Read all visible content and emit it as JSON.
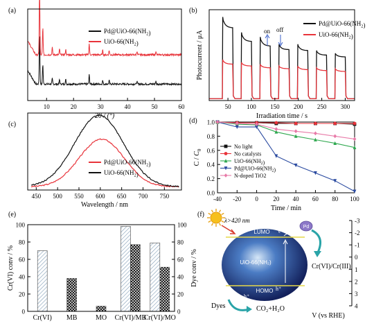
{
  "colors": {
    "black": "#111111",
    "red": "#e8333a",
    "green": "#2fa84f",
    "blue": "#2a4aa0",
    "pink": "#e87aa8",
    "navy": "#1c2f7a"
  },
  "chart_data": [
    {
      "panel": "(a)",
      "type": "line",
      "xlabel": "2θ / (°)",
      "xlim": [
        3,
        60
      ],
      "xticks": [
        10,
        20,
        30,
        40,
        50,
        60
      ],
      "yticks_shown": false,
      "series": [
        {
          "name": "Pd@UiO-66(NH2)",
          "color": "#111111",
          "baseline": 0.18,
          "peaks": [
            [
              7.4,
              0.55
            ],
            [
              8.6,
              0.22
            ],
            [
              12.1,
              0.06
            ],
            [
              14.8,
              0.05
            ],
            [
              17.1,
              0.05
            ],
            [
              25.8,
              0.1
            ],
            [
              30.8,
              0.04
            ],
            [
              33.2,
              0.04
            ],
            [
              43.5,
              0.03
            ],
            [
              50.5,
              0.03
            ]
          ]
        },
        {
          "name": "UiO-66(NH2)",
          "color": "#e8333a",
          "baseline": 0.5,
          "peaks": [
            [
              7.4,
              0.7
            ],
            [
              8.6,
              0.3
            ],
            [
              12.1,
              0.08
            ],
            [
              14.8,
              0.06
            ],
            [
              17.1,
              0.06
            ],
            [
              25.8,
              0.12
            ],
            [
              30.8,
              0.05
            ],
            [
              33.2,
              0.05
            ],
            [
              43.5,
              0.04
            ],
            [
              50.5,
              0.04
            ]
          ]
        }
      ]
    },
    {
      "panel": "(b)",
      "type": "line",
      "xlabel": "Irradiation time / s",
      "ylabel": "Photocurrent / μA",
      "xlim": [
        10,
        320
      ],
      "xticks": [
        50,
        100,
        150,
        200,
        250,
        300
      ],
      "yticks_shown": false,
      "annotations": [
        "on",
        "off"
      ],
      "on_off_cycles": [
        [
          38,
          60
        ],
        [
          78,
          100
        ],
        [
          118,
          140
        ],
        [
          158,
          180
        ],
        [
          198,
          220
        ],
        [
          238,
          260
        ],
        [
          278,
          300
        ]
      ],
      "series": [
        {
          "name": "Pd@UiO-66(NH2)",
          "color": "#111111",
          "off_level": 0.02,
          "on_peaks": [
            0.92,
            0.75,
            0.7,
            0.62,
            0.62,
            0.55,
            0.52
          ],
          "on_plateaus": [
            0.8,
            0.65,
            0.6,
            0.56,
            0.55,
            0.5,
            0.48
          ]
        },
        {
          "name": "UiO-66(NH2)",
          "color": "#e8333a",
          "off_level": 0.02,
          "on_peaks": [
            0.45,
            0.42,
            0.4,
            0.38,
            0.38,
            0.36,
            0.35
          ],
          "on_plateaus": [
            0.4,
            0.38,
            0.36,
            0.35,
            0.34,
            0.33,
            0.32
          ]
        }
      ]
    },
    {
      "panel": "(c)",
      "type": "line",
      "xlabel": "Wavelength / nm",
      "xlim": [
        430,
        790
      ],
      "xticks": [
        450,
        500,
        550,
        600,
        650,
        700,
        750
      ],
      "yticks_shown": false,
      "series": [
        {
          "name": "Pd@UiO-66(NH2)",
          "color": "#e8333a",
          "center": 603,
          "amplitude": 0.62,
          "width": 62,
          "baseline": 0.04
        },
        {
          "name": "UiO-66(NH2)",
          "color": "#111111",
          "center": 597,
          "amplitude": 0.93,
          "width": 68,
          "baseline": 0.04
        }
      ]
    },
    {
      "panel": "(d)",
      "type": "line",
      "xlabel": "Time / min",
      "ylabel": "C / C0",
      "xlim": [
        -40,
        100
      ],
      "ylim": [
        0.0,
        1.0
      ],
      "xticks": [
        -40,
        -20,
        0,
        20,
        40,
        60,
        80,
        100
      ],
      "yticks": [
        0.0,
        0.2,
        0.4,
        0.6,
        0.8,
        1.0
      ],
      "x": [
        -40,
        -20,
        0,
        20,
        40,
        60,
        80,
        100
      ],
      "series": [
        {
          "name": "No light",
          "color": "#111111",
          "marker": "square",
          "values": [
            1.0,
            0.99,
            0.99,
            0.98,
            0.98,
            0.98,
            0.98,
            0.97
          ]
        },
        {
          "name": "No catalysts",
          "color": "#e8333a",
          "marker": "circle",
          "values": [
            1.0,
            0.99,
            0.99,
            0.99,
            0.98,
            0.98,
            0.98,
            0.98
          ]
        },
        {
          "name": "UiO-66(NH2)",
          "color": "#2fa84f",
          "marker": "triangle-up",
          "values": [
            1.0,
            0.97,
            0.96,
            0.86,
            0.8,
            0.75,
            0.7,
            0.64
          ]
        },
        {
          "name": "Pd@UiO-66(NH2)",
          "color": "#2a4aa0",
          "marker": "triangle-down",
          "values": [
            1.0,
            0.93,
            0.93,
            0.52,
            0.39,
            0.28,
            0.17,
            0.02
          ]
        },
        {
          "name": "N-doped TiO2",
          "color": "#e87aa8",
          "marker": "diamond",
          "values": [
            1.0,
            0.98,
            0.97,
            0.9,
            0.87,
            0.84,
            0.8,
            0.76
          ]
        }
      ]
    },
    {
      "panel": "(e)",
      "type": "bar",
      "ylabel": "Cr(VI) conv / %",
      "ylabel_right": "Dye conv / %",
      "ylim": [
        0,
        100
      ],
      "yticks": [
        0,
        20,
        40,
        60,
        80,
        100
      ],
      "categories": [
        "Cr(VI)",
        "MB",
        "MO",
        "Cr(VI)/MB",
        "Cr(VI)/MO"
      ],
      "series": [
        {
          "name": "Cr(VI)",
          "pattern": "diagonal",
          "values": [
            70,
            null,
            null,
            98,
            79
          ]
        },
        {
          "name": "Dye",
          "pattern": "crosshatch",
          "values": [
            null,
            38,
            6,
            77,
            51
          ]
        }
      ]
    }
  ],
  "panel_f": {
    "label": "(f)",
    "light_label": "λ>420 nm",
    "lumo": "LUMO",
    "homo": "HOMO",
    "particle": "UiO-66(NH₂)",
    "electron": "e⁻",
    "hole": "h⁺",
    "pd": "Pd",
    "reduction": "Cr(VI)/Cr(III)",
    "dyes": "Dyes",
    "products": "CO₂+H₂O",
    "axis_label": "V (vs RHE)",
    "axis_ticks": [
      -3,
      -2,
      -1,
      0,
      1,
      2,
      3,
      4
    ]
  }
}
